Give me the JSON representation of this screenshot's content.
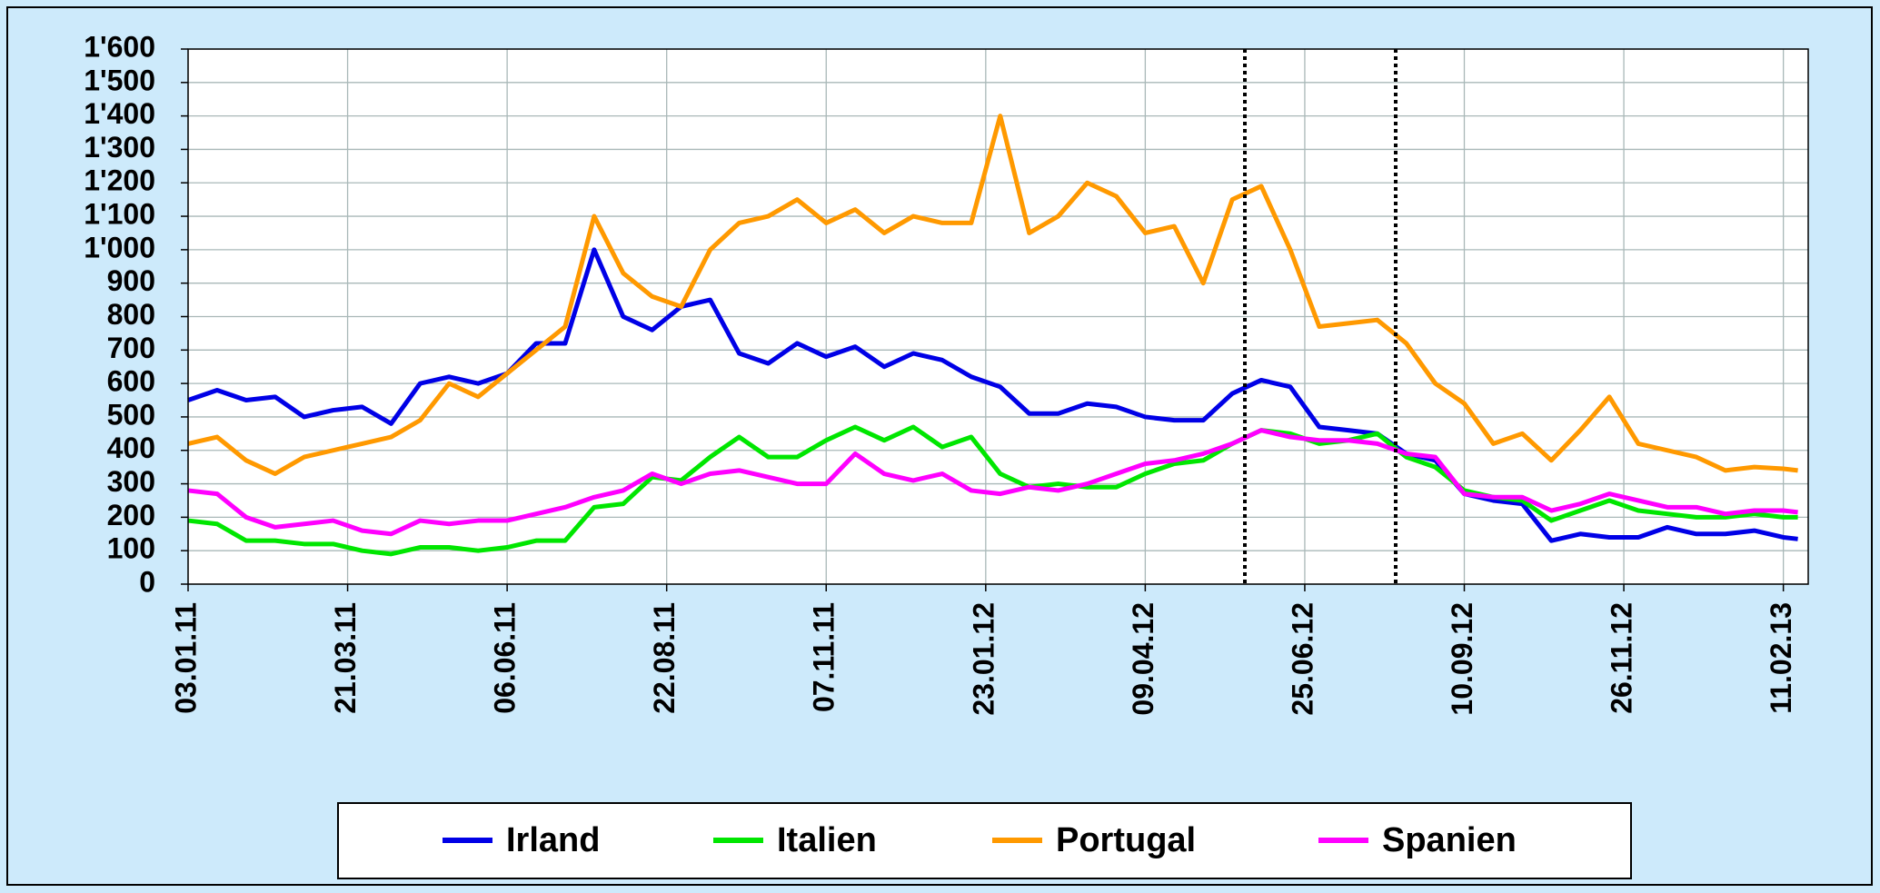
{
  "chart_data": {
    "type": "line",
    "x": [
      "03.01.11",
      "17.01.11",
      "31.01.11",
      "14.02.11",
      "28.02.11",
      "14.03.11",
      "28.03.11",
      "11.04.11",
      "25.04.11",
      "09.05.11",
      "23.05.11",
      "06.06.11",
      "20.06.11",
      "04.07.11",
      "18.07.11",
      "01.08.11",
      "15.08.11",
      "29.08.11",
      "12.09.11",
      "26.09.11",
      "10.10.11",
      "24.10.11",
      "07.11.11",
      "21.11.11",
      "05.12.11",
      "19.12.11",
      "02.01.12",
      "16.01.12",
      "30.01.12",
      "13.02.12",
      "27.02.12",
      "12.03.12",
      "26.03.12",
      "09.04.12",
      "23.04.12",
      "07.05.12",
      "21.05.12",
      "04.06.12",
      "18.06.12",
      "02.07.12",
      "16.07.12",
      "30.07.12",
      "13.08.12",
      "27.08.12",
      "10.09.12",
      "24.09.12",
      "08.10.12",
      "22.10.12",
      "05.11.12",
      "19.11.12",
      "03.12.12",
      "17.12.12",
      "31.12.12",
      "14.01.13",
      "28.01.13",
      "11.02.13",
      "18.02.13"
    ],
    "series": [
      {
        "name": "Irland",
        "color": "#0000e6",
        "values": [
          550,
          580,
          550,
          560,
          500,
          520,
          530,
          480,
          600,
          620,
          600,
          630,
          720,
          720,
          1000,
          800,
          760,
          830,
          850,
          690,
          660,
          720,
          680,
          710,
          650,
          690,
          670,
          620,
          590,
          510,
          510,
          540,
          530,
          500,
          490,
          490,
          570,
          610,
          590,
          470,
          460,
          450,
          390,
          370,
          270,
          250,
          240,
          130,
          150,
          140,
          140,
          170,
          150,
          150,
          160,
          140,
          135
        ]
      },
      {
        "name": "Italien",
        "color": "#00e600",
        "values": [
          190,
          180,
          130,
          130,
          120,
          120,
          100,
          90,
          110,
          110,
          100,
          110,
          130,
          130,
          230,
          240,
          320,
          310,
          380,
          440,
          380,
          380,
          430,
          470,
          430,
          470,
          410,
          440,
          330,
          290,
          300,
          290,
          290,
          330,
          360,
          370,
          420,
          460,
          450,
          420,
          430,
          450,
          380,
          350,
          280,
          260,
          250,
          190,
          220,
          250,
          220,
          210,
          200,
          200,
          210,
          200,
          200
        ]
      },
      {
        "name": "Portugal",
        "color": "#ff9900",
        "values": [
          420,
          440,
          370,
          330,
          380,
          400,
          420,
          440,
          490,
          600,
          560,
          630,
          700,
          770,
          1100,
          930,
          860,
          830,
          1000,
          1080,
          1100,
          1150,
          1080,
          1120,
          1050,
          1100,
          1080,
          1080,
          1400,
          1050,
          1100,
          1200,
          1160,
          1050,
          1070,
          900,
          1150,
          1190,
          1000,
          770,
          780,
          790,
          720,
          600,
          540,
          420,
          450,
          370,
          460,
          560,
          420,
          400,
          380,
          340,
          350,
          345,
          340
        ]
      },
      {
        "name": "Spanien",
        "color": "#ff00ff",
        "values": [
          280,
          270,
          200,
          170,
          180,
          190,
          160,
          150,
          190,
          180,
          190,
          190,
          210,
          230,
          260,
          280,
          330,
          300,
          330,
          340,
          320,
          300,
          300,
          390,
          330,
          310,
          330,
          280,
          270,
          290,
          280,
          300,
          330,
          360,
          370,
          390,
          420,
          460,
          440,
          430,
          430,
          420,
          390,
          380,
          270,
          260,
          260,
          220,
          240,
          270,
          250,
          230,
          230,
          210,
          220,
          220,
          215
        ]
      }
    ],
    "xlim": [
      "03.01.11",
      "23.02.13"
    ],
    "xticks": [
      "03.01.11",
      "21.03.11",
      "06.06.11",
      "22.08.11",
      "07.11.11",
      "23.01.12",
      "09.04.12",
      "25.06.12",
      "10.09.12",
      "26.11.12",
      "11.02.13"
    ],
    "ylim": [
      0,
      1600
    ],
    "yticks": [
      0,
      100,
      200,
      300,
      400,
      500,
      600,
      700,
      800,
      900,
      {
        "value": 1000,
        "label": "1'000"
      },
      {
        "value": 1100,
        "label": "1'100"
      },
      {
        "value": 1200,
        "label": "1'200"
      },
      {
        "value": 1300,
        "label": "1'300"
      },
      {
        "value": 1400,
        "label": "1'400"
      },
      {
        "value": 1500,
        "label": "1'500"
      },
      {
        "value": 1600,
        "label": "1'600"
      }
    ],
    "grid": true
  }
}
